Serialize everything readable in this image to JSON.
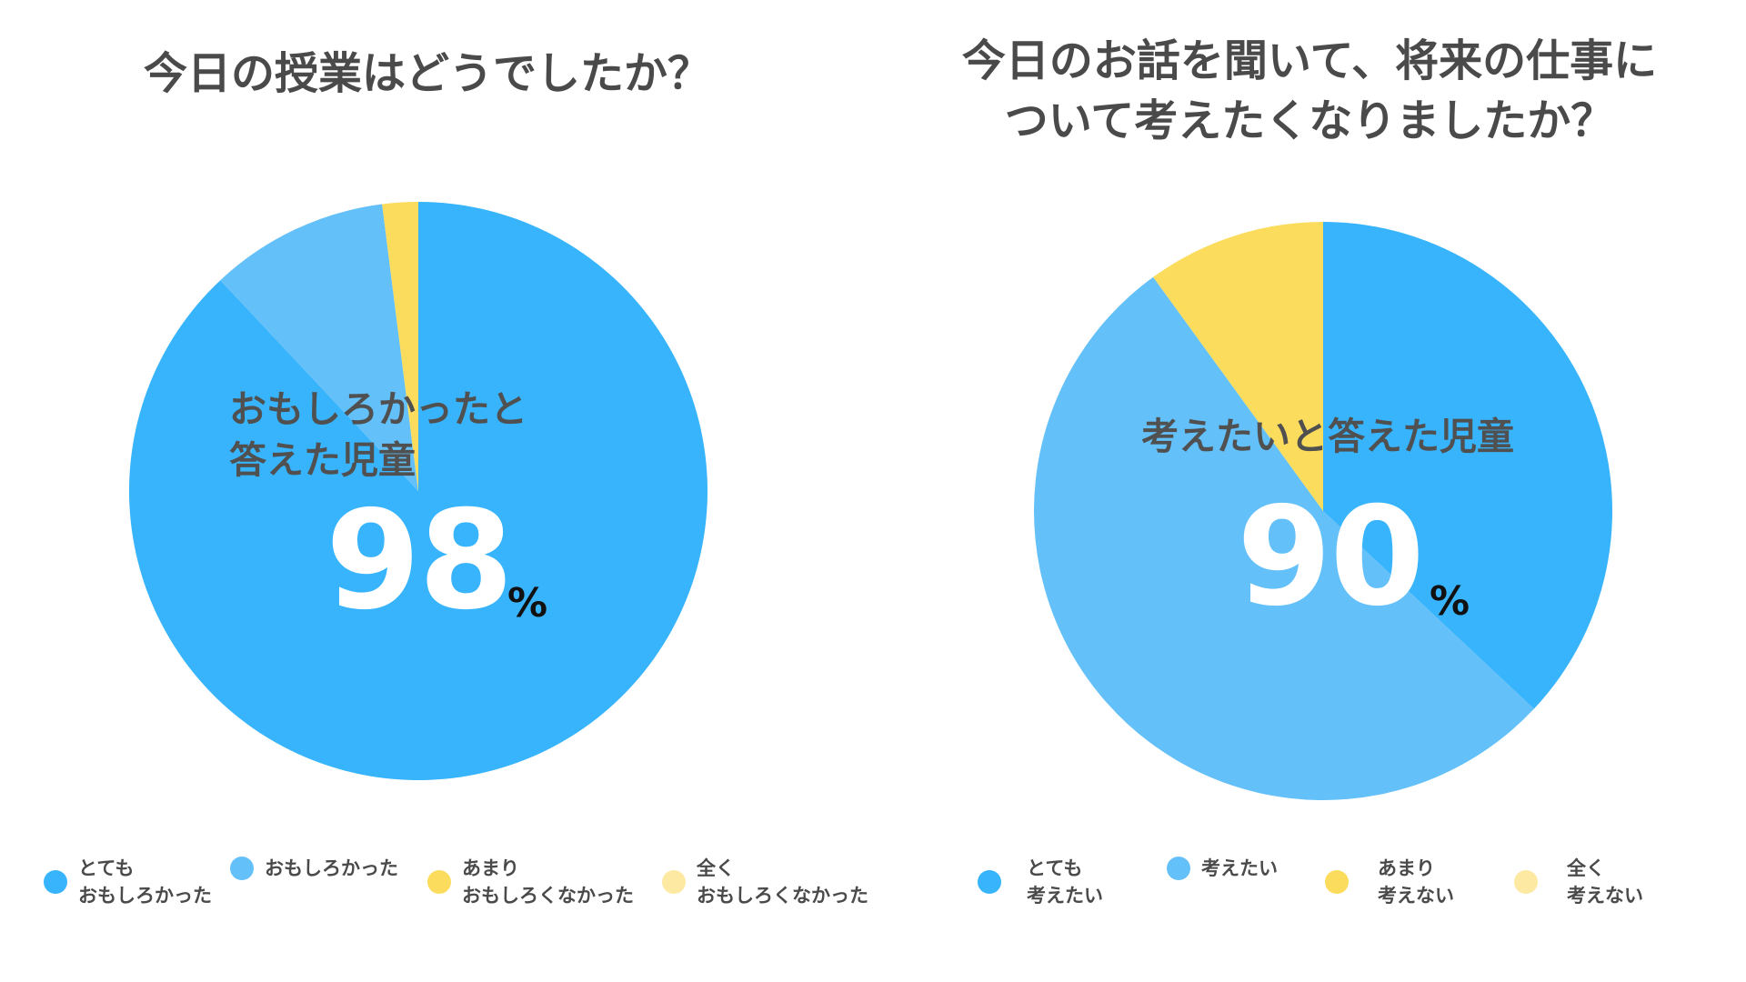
{
  "colors": {
    "strong_blue": "#38B4FC",
    "light_blue": "#64C0F8",
    "yellow": "#FCDC5C",
    "pale_yellow": "#FDE9A2",
    "text": "#4A4A4A"
  },
  "chart_data": [
    {
      "type": "pie",
      "title": "今日の授業はどうでしたか？",
      "center_label": "おもしろかったと\n答えた児童",
      "highlight_value": "98",
      "highlight_unit": "%",
      "slices": [
        {
          "label": "とても\nおもしろかった",
          "value": 88,
          "color": "#38B4FC"
        },
        {
          "label": "おもしろかった",
          "value": 10,
          "color": "#64C0F8"
        },
        {
          "label": "あまり\nおもしろくなかった",
          "value": 2,
          "color": "#FCDC5C"
        },
        {
          "label": "全く\nおもしろくなかった",
          "value": 0,
          "color": "#FDE9A2"
        }
      ]
    },
    {
      "type": "pie",
      "title": "今日のお話を聞いて、将来の仕事に\nついて考えたくなりましたか？",
      "center_label": "考えたいと答えた児童",
      "highlight_value": "90",
      "highlight_unit": "%",
      "slices": [
        {
          "label": "とても\n考えたい",
          "value": 37,
          "color": "#38B4FC"
        },
        {
          "label": "考えたい",
          "value": 53,
          "color": "#64C0F8"
        },
        {
          "label": "あまり\n考えない",
          "value": 10,
          "color": "#FCDC5C"
        },
        {
          "label": "全く\n考えない",
          "value": 0,
          "color": "#FDE9A2"
        }
      ]
    }
  ]
}
